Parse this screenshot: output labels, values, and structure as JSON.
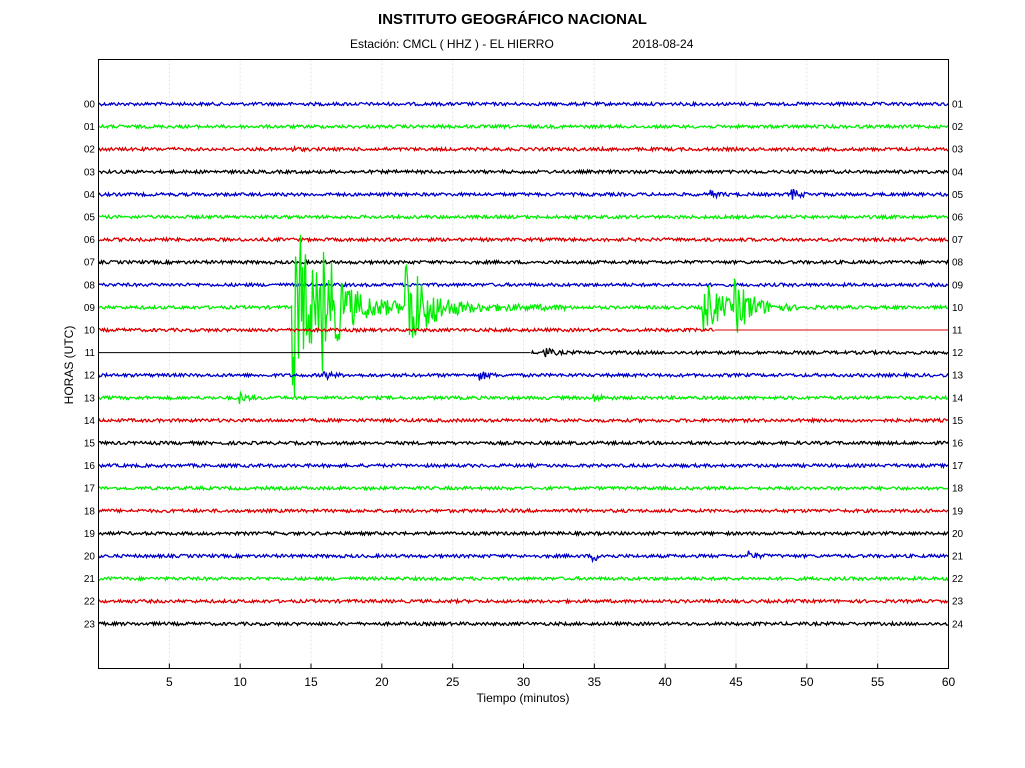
{
  "header": {
    "title": "INSTITUTO GEOGRÁFICO NACIONAL",
    "station_text": "Estación:   CMCL ( HHZ ) - EL HIERRO",
    "date_text": "2018-08-24"
  },
  "chart_data": {
    "type": "line",
    "title": "INSTITUTO GEOGRÁFICO NACIONAL",
    "xlabel": "Tiempo (minutos)",
    "ylabel": "HORAS (UTC)",
    "xlim": [
      0,
      60
    ],
    "x_ticks": [
      5,
      10,
      15,
      20,
      25,
      30,
      35,
      40,
      45,
      50,
      55,
      60
    ],
    "x_tick_labels": [
      "5",
      "10",
      "15",
      "20",
      "25",
      "30",
      "35",
      "40",
      "45",
      "50",
      "55",
      "60"
    ],
    "left_labels": [
      "00",
      "01",
      "02",
      "03",
      "04",
      "05",
      "06",
      "07",
      "08",
      "09",
      "10",
      "11",
      "12",
      "13",
      "14",
      "15",
      "16",
      "17",
      "18",
      "19",
      "20",
      "21",
      "22",
      "23"
    ],
    "right_labels": [
      "01",
      "02",
      "03",
      "04",
      "05",
      "06",
      "07",
      "08",
      "09",
      "10",
      "11",
      "12",
      "13",
      "14",
      "15",
      "16",
      "17",
      "18",
      "19",
      "20",
      "21",
      "22",
      "23",
      "24"
    ],
    "grid": true,
    "trace_colors": [
      "#0000cc",
      "#00ee00",
      "#dd0000",
      "#000000"
    ],
    "gap_segments": [
      {
        "hour": 10,
        "from_min": 43.5,
        "to_min": 60
      },
      {
        "hour": 11,
        "from_min": 0,
        "to_min": 30.5
      }
    ],
    "events": [
      {
        "hour": 2,
        "minute": 13.5,
        "amplitude": 2
      },
      {
        "hour": 4,
        "minute": 43.3,
        "amplitude": 3
      },
      {
        "hour": 4,
        "minute": 49.0,
        "amplitude": 5
      },
      {
        "hour": 9,
        "minute": 13.8,
        "amplitude": 90
      },
      {
        "hour": 9,
        "minute": 15.9,
        "amplitude": 40
      },
      {
        "hour": 9,
        "minute": 21.8,
        "amplitude": 50
      },
      {
        "hour": 9,
        "minute": 42.7,
        "amplitude": 28
      },
      {
        "hour": 9,
        "minute": 45.0,
        "amplitude": 22
      },
      {
        "hour": 11,
        "minute": 31.5,
        "amplitude": 5
      },
      {
        "hour": 12,
        "minute": 16.0,
        "amplitude": 4
      },
      {
        "hour": 12,
        "minute": 27.0,
        "amplitude": 4
      },
      {
        "hour": 13,
        "minute": 10.0,
        "amplitude": 5
      },
      {
        "hour": 13,
        "minute": 35.0,
        "amplitude": 4
      },
      {
        "hour": 20,
        "minute": 35.0,
        "amplitude": 4
      },
      {
        "hour": 20,
        "minute": 46.0,
        "amplitude": 4
      }
    ]
  }
}
